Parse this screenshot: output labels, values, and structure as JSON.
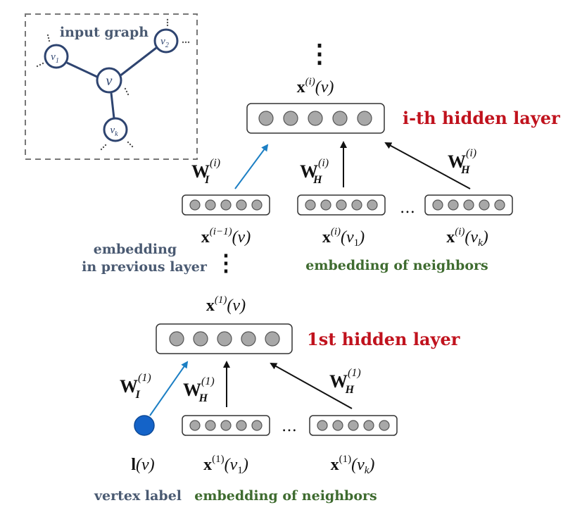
{
  "input_graph": {
    "title": "input graph",
    "center": "v",
    "neighbors": [
      {
        "base": "v",
        "sub": "1"
      },
      {
        "base": "v",
        "sub": "2"
      },
      {
        "base": "v",
        "sub": "k"
      }
    ]
  },
  "top": {
    "vdots": "⋮",
    "output": {
      "base": "x",
      "sup": "(i)",
      "arg": "(v)"
    },
    "layer_title": "i-th hidden layer",
    "weight_input": {
      "base": "W",
      "sub": "I",
      "sup": "(i)"
    },
    "weight_hidden_1": {
      "base": "W",
      "sub": "H",
      "sup": "(i)"
    },
    "weight_hidden_2": {
      "base": "W",
      "sub": "H",
      "sup": "(i)"
    },
    "ellipsis": "…",
    "inputs": [
      {
        "base": "x",
        "sup": "(i−1)",
        "arg": "(v)"
      },
      {
        "base": "x",
        "sup": "(i)",
        "arg": "(v",
        "argsub": "1",
        "close": ")"
      },
      {
        "base": "x",
        "sup": "(i)",
        "arg": "(v",
        "argsub": "k",
        "close": ")"
      }
    ],
    "prev_caption": [
      "embedding",
      "in previous layer"
    ],
    "neighbors_caption": "embedding of neighbors"
  },
  "middle": {
    "vdots": "⋮"
  },
  "bottom": {
    "output": {
      "base": "x",
      "sup": "(1)",
      "arg": "(v)"
    },
    "layer_title": "1st hidden layer",
    "weight_input": {
      "base": "W",
      "sub": "I",
      "sup": "(1)"
    },
    "weight_hidden_1": {
      "base": "W",
      "sub": "H",
      "sup": "(1)"
    },
    "weight_hidden_2": {
      "base": "W",
      "sub": "H",
      "sup": "(1)"
    },
    "ellipsis": "…",
    "inputs": [
      {
        "base": "l",
        "arg": "(v)"
      },
      {
        "base": "x",
        "sup": "(1)",
        "arg": "(v",
        "argsub": "1",
        "close": ")"
      },
      {
        "base": "x",
        "sup": "(1)",
        "arg": "(v",
        "argsub": "k",
        "close": ")"
      }
    ],
    "label_caption": "vertex label",
    "neighbors_caption": "embedding of neighbors"
  },
  "colors": {
    "title_red": "#c0121d",
    "caption_slate": "#4a5a72",
    "caption_green": "#3e6b2f",
    "graph_blue": "#2e4470",
    "arrow_blue": "#1c7fc4",
    "vertex_fill": "#1463c8",
    "unit_gray": "#a8a8a8"
  }
}
